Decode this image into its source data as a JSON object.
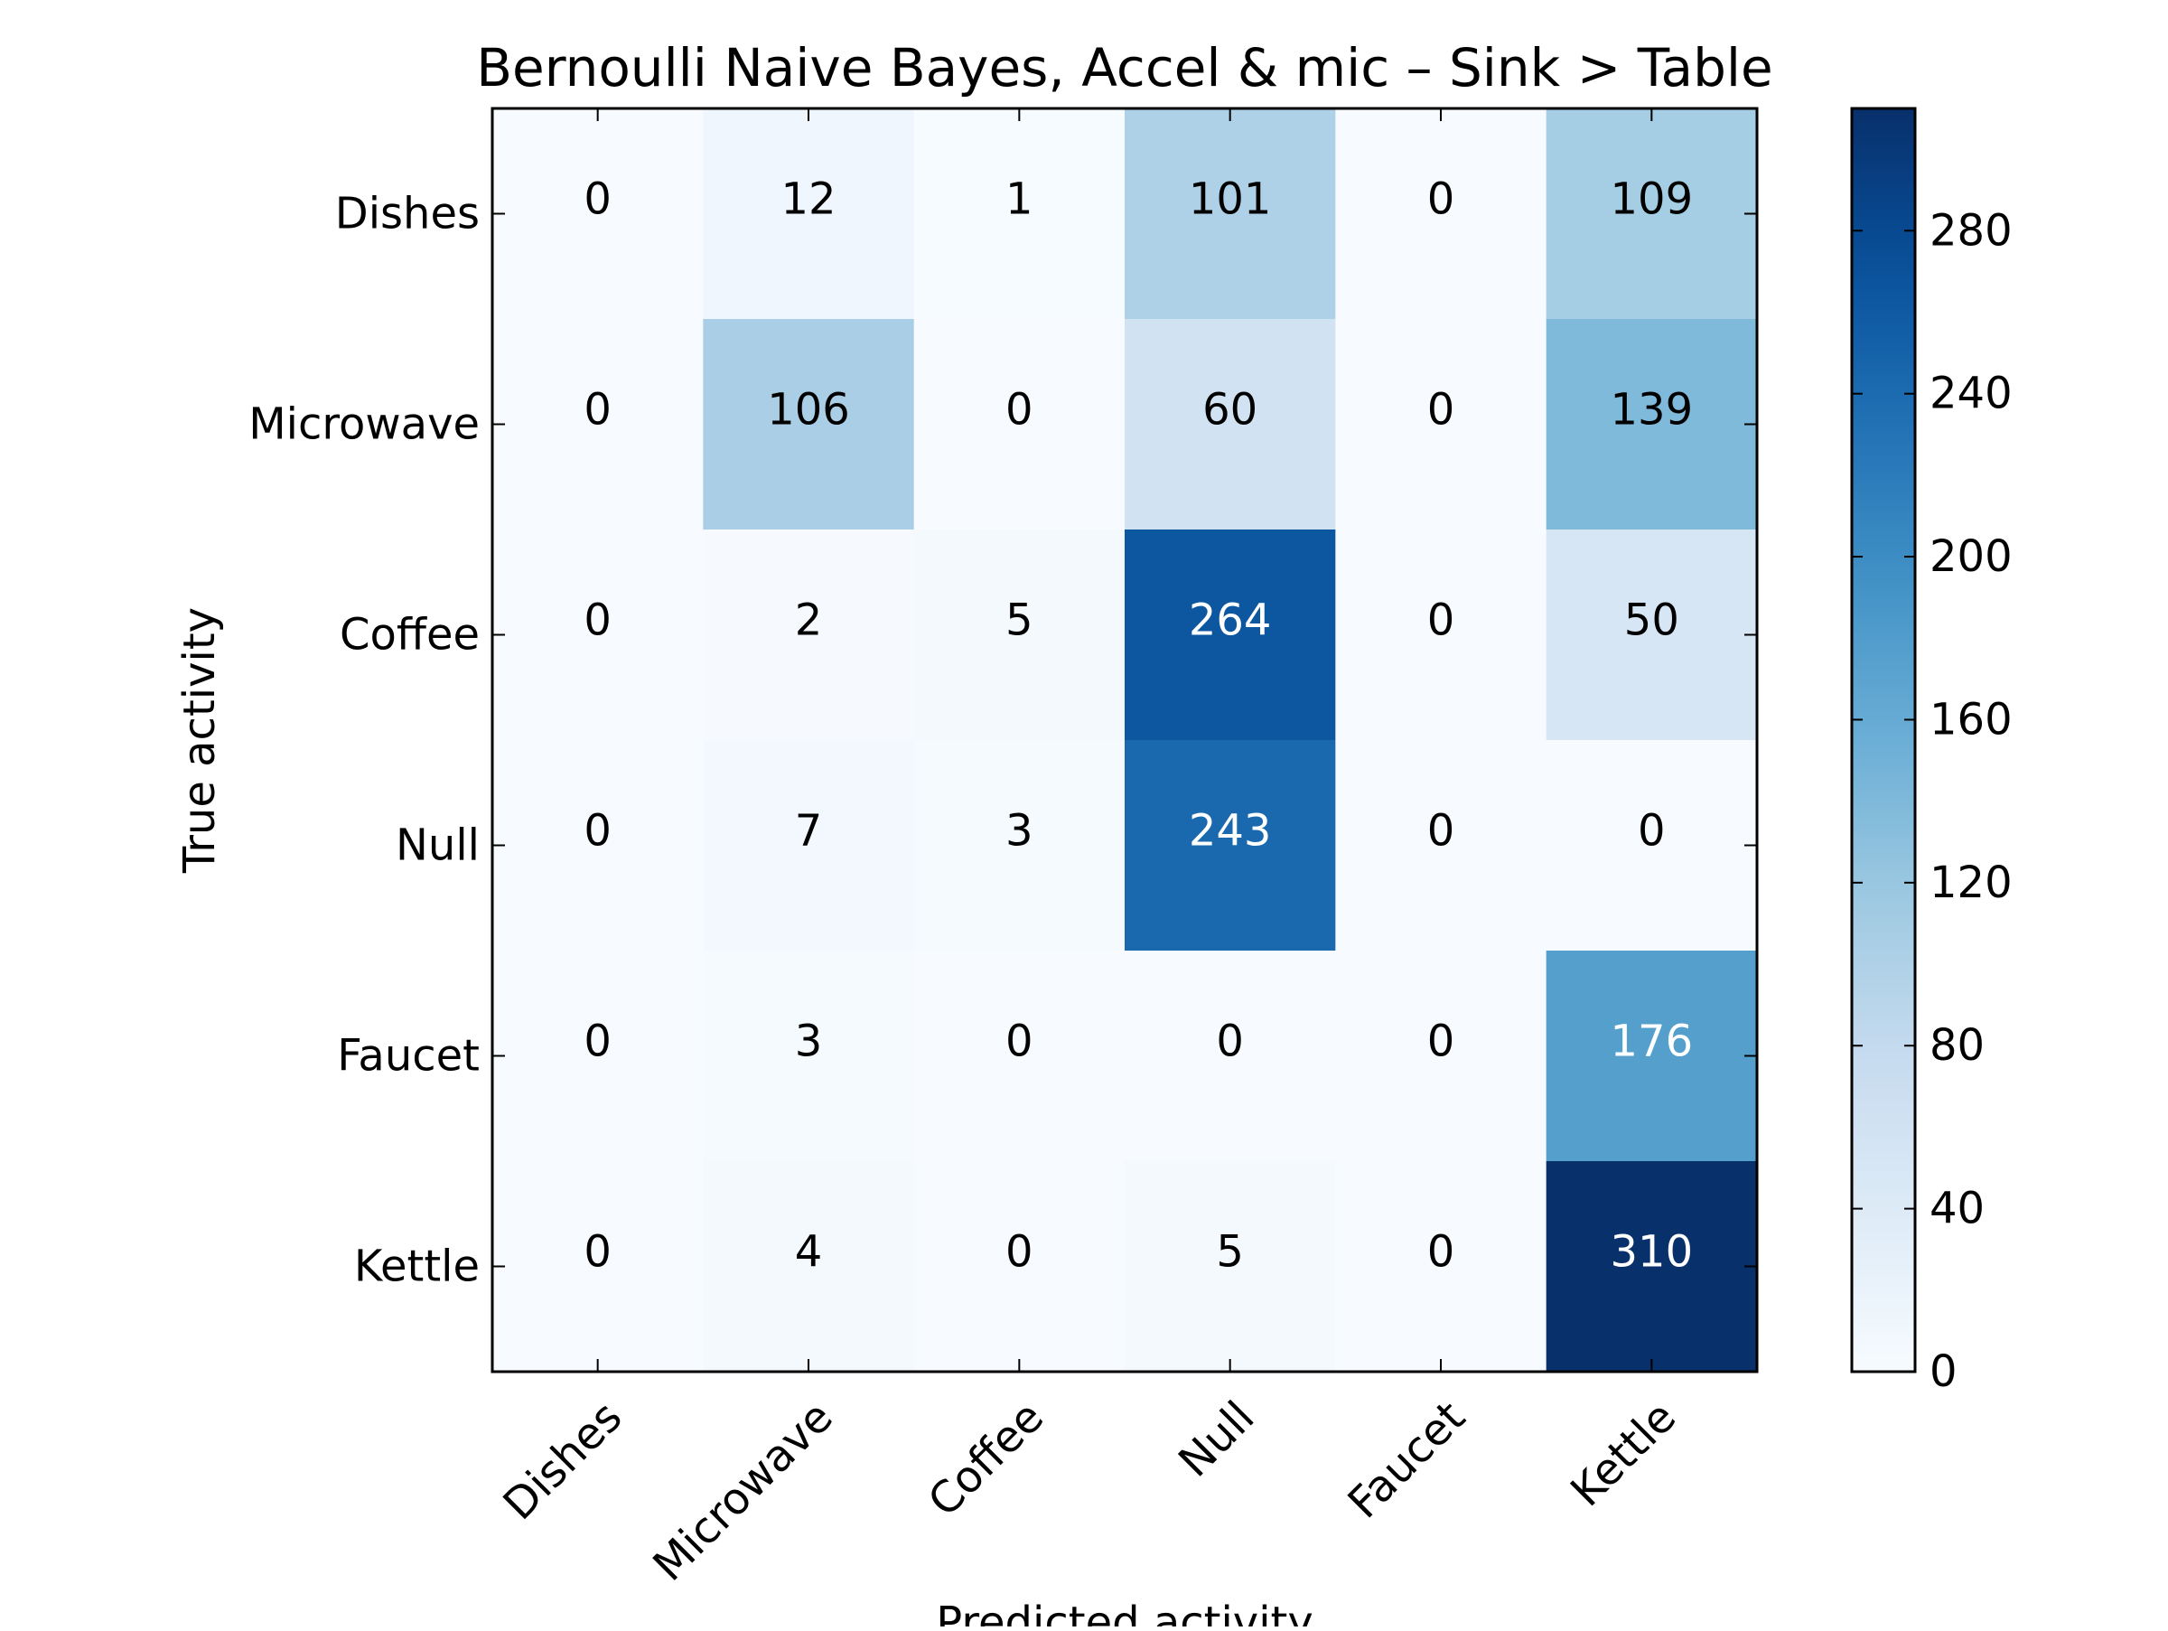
{
  "chart_data": {
    "type": "heatmap",
    "title": "Bernoulli Naive Bayes, Accel & mic – Sink > Table",
    "xlabel": "Predicted activity",
    "ylabel": "True activity",
    "x_categories": [
      "Dishes",
      "Microwave",
      "Coffee",
      "Null",
      "Faucet",
      "Kettle"
    ],
    "y_categories": [
      "Dishes",
      "Microwave",
      "Coffee",
      "Null",
      "Faucet",
      "Kettle"
    ],
    "values": [
      [
        0,
        12,
        1,
        101,
        0,
        109
      ],
      [
        0,
        106,
        0,
        60,
        0,
        139
      ],
      [
        0,
        2,
        5,
        264,
        0,
        50
      ],
      [
        0,
        7,
        3,
        243,
        0,
        0
      ],
      [
        0,
        3,
        0,
        0,
        0,
        176
      ],
      [
        0,
        4,
        0,
        5,
        0,
        310
      ]
    ],
    "colormap": "Blues",
    "vmin": 0,
    "vmax": 310,
    "colorbar_ticks": [
      0,
      40,
      80,
      120,
      160,
      200,
      240,
      280
    ],
    "x_tick_rotation": "45 degrees",
    "grid": false
  }
}
